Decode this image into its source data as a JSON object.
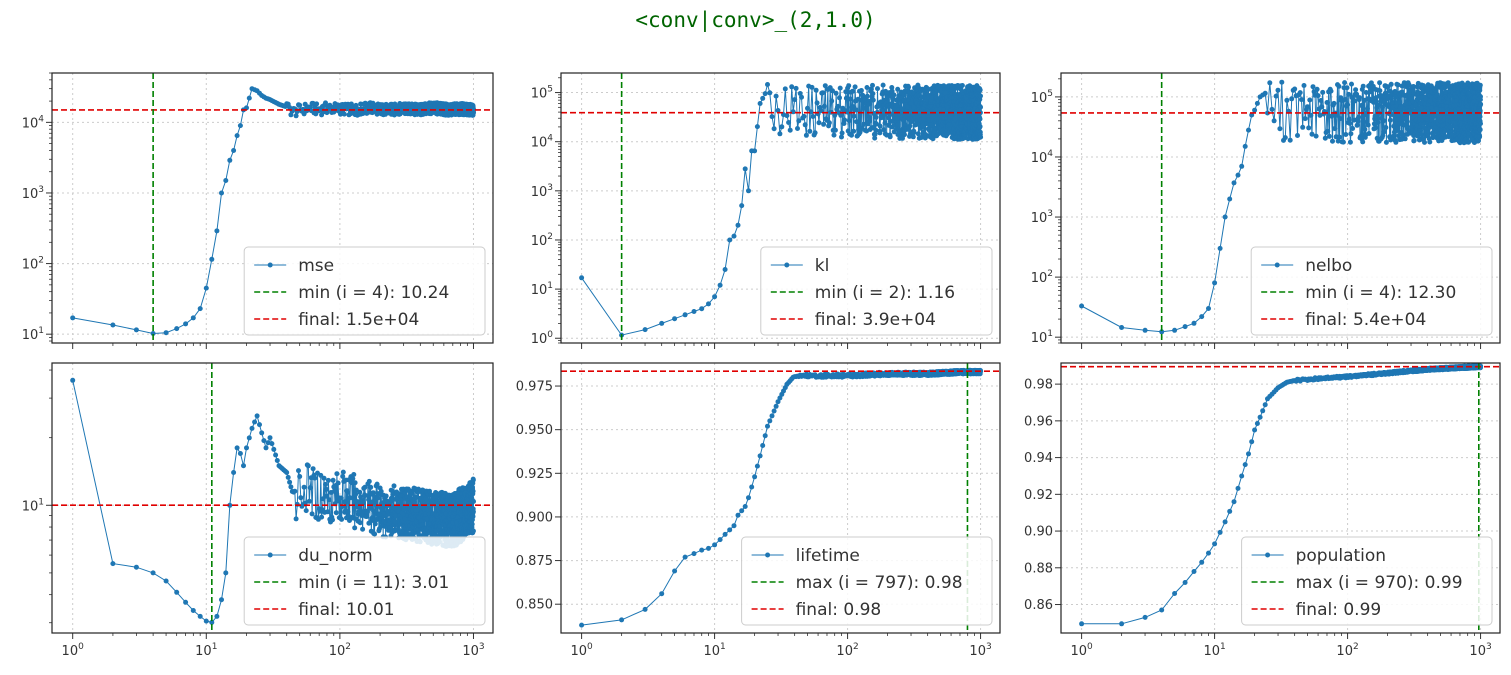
{
  "figure_title": "<conv|conv>_(2,1.0)",
  "colors": {
    "series": "#1f77b4",
    "min_max_line": "#008000",
    "final_line": "#e00000",
    "title": "#006400",
    "grid": "#cccccc"
  },
  "chart_data": [
    {
      "type": "line",
      "metric": "mse",
      "xscale": "log",
      "yscale": "log",
      "xlim": [
        0.7,
        1400
      ],
      "ylim": [
        7.5,
        50000
      ],
      "grid": true,
      "legend_position": "lower-right",
      "yticks": [
        {
          "v": 10,
          "label": "10^1"
        },
        {
          "v": 100,
          "label": "10^2"
        },
        {
          "v": 1000,
          "label": "10^3"
        },
        {
          "v": 10000,
          "label": "10^4"
        }
      ],
      "xticks": [],
      "points": [
        [
          1,
          17
        ],
        [
          2,
          13.5
        ],
        [
          3,
          11.5
        ],
        [
          4,
          10.24
        ],
        [
          5,
          10.5
        ],
        [
          6,
          12
        ],
        [
          7,
          14
        ],
        [
          8,
          17
        ],
        [
          9,
          23
        ],
        [
          10,
          45
        ],
        [
          11,
          115
        ],
        [
          12,
          290
        ],
        [
          13,
          1000
        ],
        [
          14,
          1500
        ],
        [
          15,
          2900
        ],
        [
          16,
          4000
        ],
        [
          17,
          6500
        ],
        [
          18,
          9000
        ],
        [
          19,
          15000
        ],
        [
          20,
          16000
        ],
        [
          22,
          30000
        ],
        [
          24,
          28000
        ],
        [
          26,
          24000
        ],
        [
          28,
          22000
        ],
        [
          30,
          21000
        ],
        [
          35,
          18000
        ],
        [
          40,
          16500
        ],
        [
          45,
          14000
        ],
        [
          50,
          15000
        ],
        [
          60,
          16000
        ],
        [
          70,
          15000
        ],
        [
          80,
          16000
        ],
        [
          100,
          15500
        ],
        [
          130,
          15000
        ],
        [
          170,
          16000
        ],
        [
          220,
          15000
        ],
        [
          300,
          15500
        ],
        [
          400,
          15000
        ],
        [
          500,
          16000
        ],
        [
          650,
          15000
        ],
        [
          800,
          15500
        ],
        [
          1000,
          15000
        ]
      ],
      "noise": {
        "from": 40,
        "amp": 0.08
      },
      "extreme": {
        "kind": "min",
        "x": 4
      },
      "final": 15000,
      "legend": [
        {
          "label": "mse"
        },
        {
          "label": "min (i = 4): 10.24"
        },
        {
          "label": "final: 1.5e+04"
        }
      ]
    },
    {
      "type": "line",
      "metric": "kl",
      "xscale": "log",
      "yscale": "log",
      "xlim": [
        0.7,
        1400
      ],
      "ylim": [
        0.8,
        250000
      ],
      "grid": true,
      "legend_position": "lower-right",
      "yticks": [
        {
          "v": 1,
          "label": "10^0"
        },
        {
          "v": 10,
          "label": "10^1"
        },
        {
          "v": 100,
          "label": "10^2"
        },
        {
          "v": 1000,
          "label": "10^3"
        },
        {
          "v": 10000,
          "label": "10^4"
        },
        {
          "v": 100000,
          "label": "10^5"
        }
      ],
      "xticks": [],
      "points": [
        [
          1,
          17
        ],
        [
          2,
          1.16
        ],
        [
          3,
          1.5
        ],
        [
          4,
          2
        ],
        [
          5,
          2.5
        ],
        [
          6,
          3
        ],
        [
          7,
          3.5
        ],
        [
          8,
          4
        ],
        [
          9,
          5
        ],
        [
          10,
          7
        ],
        [
          11,
          12
        ],
        [
          12,
          25
        ],
        [
          13,
          100
        ],
        [
          14,
          120
        ],
        [
          15,
          200
        ],
        [
          16,
          500
        ],
        [
          17,
          2800
        ],
        [
          18,
          1000
        ],
        [
          19,
          6500
        ],
        [
          20,
          6500
        ],
        [
          22,
          60000
        ],
        [
          24,
          95000
        ],
        [
          26,
          60000
        ],
        [
          30,
          50000
        ],
        [
          40,
          45000
        ],
        [
          60,
          40000
        ],
        [
          100,
          45000
        ],
        [
          200,
          40000
        ],
        [
          400,
          40000
        ],
        [
          1000,
          39000
        ]
      ],
      "noise": {
        "from": 25,
        "amp": 0.55
      },
      "extreme": {
        "kind": "min",
        "x": 2
      },
      "final": 39000,
      "legend": [
        {
          "label": "kl"
        },
        {
          "label": "min (i = 2): 1.16"
        },
        {
          "label": "final: 3.9e+04"
        }
      ]
    },
    {
      "type": "line",
      "metric": "nelbo",
      "xscale": "log",
      "yscale": "log",
      "xlim": [
        0.7,
        1400
      ],
      "ylim": [
        8,
        250000
      ],
      "grid": true,
      "legend_position": "lower-right",
      "yticks": [
        {
          "v": 10,
          "label": "10^1"
        },
        {
          "v": 100,
          "label": "10^2"
        },
        {
          "v": 1000,
          "label": "10^3"
        },
        {
          "v": 10000,
          "label": "10^4"
        },
        {
          "v": 100000,
          "label": "10^5"
        }
      ],
      "xticks": [],
      "points": [
        [
          1,
          33
        ],
        [
          2,
          14.5
        ],
        [
          3,
          13
        ],
        [
          4,
          12.3
        ],
        [
          5,
          13
        ],
        [
          6,
          15
        ],
        [
          7,
          17
        ],
        [
          8,
          22
        ],
        [
          9,
          30
        ],
        [
          10,
          80
        ],
        [
          11,
          300
        ],
        [
          12,
          1000
        ],
        [
          13,
          2000
        ],
        [
          14,
          3700
        ],
        [
          15,
          5000
        ],
        [
          16,
          7000
        ],
        [
          17,
          15000
        ],
        [
          18,
          28000
        ],
        [
          19,
          50000
        ],
        [
          20,
          60000
        ],
        [
          22,
          100000
        ],
        [
          24,
          115000
        ],
        [
          26,
          70000
        ],
        [
          30,
          60000
        ],
        [
          40,
          55000
        ],
        [
          60,
          55000
        ],
        [
          100,
          55000
        ],
        [
          200,
          55000
        ],
        [
          400,
          55000
        ],
        [
          1000,
          54000
        ]
      ],
      "noise": {
        "from": 25,
        "amp": 0.5
      },
      "extreme": {
        "kind": "min",
        "x": 4
      },
      "final": 54000,
      "legend": [
        {
          "label": "nelbo"
        },
        {
          "label": "min (i = 4): 12.30"
        },
        {
          "label": "final: 5.4e+04"
        }
      ]
    },
    {
      "type": "line",
      "metric": "du_norm",
      "xscale": "log",
      "yscale": "log",
      "xlim": [
        0.7,
        1400
      ],
      "ylim": [
        2.7,
        43
      ],
      "grid": true,
      "legend_position": "lower-right",
      "yticks": [
        {
          "v": 10,
          "label": "10^1"
        }
      ],
      "xticks": [
        {
          "v": 1,
          "label": "10^0"
        },
        {
          "v": 10,
          "label": "10^1"
        },
        {
          "v": 100,
          "label": "10^2"
        },
        {
          "v": 1000,
          "label": "10^3"
        }
      ],
      "points": [
        [
          1,
          36
        ],
        [
          2,
          5.5
        ],
        [
          3,
          5.3
        ],
        [
          4,
          5
        ],
        [
          5,
          4.6
        ],
        [
          6,
          4.1
        ],
        [
          7,
          3.7
        ],
        [
          8,
          3.4
        ],
        [
          9,
          3.2
        ],
        [
          10,
          3.05
        ],
        [
          11,
          3.01
        ],
        [
          12,
          3.2
        ],
        [
          13,
          3.8
        ],
        [
          14,
          5
        ],
        [
          15,
          10
        ],
        [
          16,
          14
        ],
        [
          17,
          18
        ],
        [
          18,
          17
        ],
        [
          19,
          15
        ],
        [
          20,
          18
        ],
        [
          22,
          22
        ],
        [
          24,
          25
        ],
        [
          26,
          21
        ],
        [
          28,
          18
        ],
        [
          30,
          20
        ],
        [
          35,
          15
        ],
        [
          40,
          14
        ],
        [
          45,
          11
        ],
        [
          50,
          12
        ],
        [
          70,
          11
        ],
        [
          100,
          11
        ],
        [
          200,
          9.5
        ],
        [
          400,
          9
        ],
        [
          700,
          8.5
        ],
        [
          1000,
          10.01
        ]
      ],
      "noise": {
        "from": 45,
        "amp": 0.12
      },
      "extreme": {
        "kind": "min",
        "x": 11
      },
      "final": 10.01,
      "legend": [
        {
          "label": "du_norm"
        },
        {
          "label": "min (i = 11): 3.01"
        },
        {
          "label": "final: 10.01"
        }
      ]
    },
    {
      "type": "line",
      "metric": "lifetime",
      "xscale": "log",
      "yscale": "linear",
      "xlim": [
        0.7,
        1400
      ],
      "ylim": [
        0.8335,
        0.9882
      ],
      "grid": true,
      "legend_position": "lower-right",
      "yticks": [
        {
          "v": 0.85,
          "label": "0.850"
        },
        {
          "v": 0.875,
          "label": "0.875"
        },
        {
          "v": 0.9,
          "label": "0.900"
        },
        {
          "v": 0.925,
          "label": "0.925"
        },
        {
          "v": 0.95,
          "label": "0.950"
        },
        {
          "v": 0.975,
          "label": "0.975"
        }
      ],
      "xticks": [
        {
          "v": 1,
          "label": "10^0"
        },
        {
          "v": 10,
          "label": "10^1"
        },
        {
          "v": 100,
          "label": "10^2"
        },
        {
          "v": 1000,
          "label": "10^3"
        }
      ],
      "points": [
        [
          1,
          0.838
        ],
        [
          2,
          0.841
        ],
        [
          3,
          0.847
        ],
        [
          4,
          0.856
        ],
        [
          5,
          0.869
        ],
        [
          6,
          0.877
        ],
        [
          7,
          0.879
        ],
        [
          8,
          0.881
        ],
        [
          9,
          0.882
        ],
        [
          10,
          0.884
        ],
        [
          11,
          0.887
        ],
        [
          12,
          0.89
        ],
        [
          14,
          0.895
        ],
        [
          15,
          0.901
        ],
        [
          17,
          0.906
        ],
        [
          18,
          0.911
        ],
        [
          20,
          0.923
        ],
        [
          22,
          0.935
        ],
        [
          25,
          0.952
        ],
        [
          30,
          0.966
        ],
        [
          35,
          0.976
        ],
        [
          40,
          0.981
        ],
        [
          50,
          0.981
        ],
        [
          100,
          0.981
        ],
        [
          200,
          0.982
        ],
        [
          400,
          0.982
        ],
        [
          700,
          0.983
        ],
        [
          1000,
          0.983
        ]
      ],
      "noise": {
        "from": 40,
        "amp": 0.001
      },
      "extreme": {
        "kind": "max",
        "x": 797
      },
      "final": 0.9835,
      "legend": [
        {
          "label": "lifetime"
        },
        {
          "label": "max (i = 797): 0.98"
        },
        {
          "label": "final: 0.98"
        }
      ]
    },
    {
      "type": "line",
      "metric": "population",
      "xscale": "log",
      "yscale": "linear",
      "xlim": [
        0.7,
        1400
      ],
      "ylim": [
        0.8445,
        0.9915
      ],
      "grid": true,
      "legend_position": "lower-right",
      "yticks": [
        {
          "v": 0.86,
          "label": "0.86"
        },
        {
          "v": 0.88,
          "label": "0.88"
        },
        {
          "v": 0.9,
          "label": "0.90"
        },
        {
          "v": 0.92,
          "label": "0.92"
        },
        {
          "v": 0.94,
          "label": "0.94"
        },
        {
          "v": 0.96,
          "label": "0.96"
        },
        {
          "v": 0.98,
          "label": "0.98"
        }
      ],
      "xticks": [
        {
          "v": 1,
          "label": "10^0"
        },
        {
          "v": 10,
          "label": "10^1"
        },
        {
          "v": 100,
          "label": "10^2"
        },
        {
          "v": 1000,
          "label": "10^3"
        }
      ],
      "points": [
        [
          1,
          0.8495
        ],
        [
          2,
          0.8495
        ],
        [
          3,
          0.853
        ],
        [
          4,
          0.857
        ],
        [
          5,
          0.866
        ],
        [
          6,
          0.872
        ],
        [
          7,
          0.878
        ],
        [
          8,
          0.883
        ],
        [
          9,
          0.888
        ],
        [
          10,
          0.893
        ],
        [
          12,
          0.905
        ],
        [
          14,
          0.916
        ],
        [
          16,
          0.93
        ],
        [
          18,
          0.942
        ],
        [
          20,
          0.955
        ],
        [
          22,
          0.962
        ],
        [
          25,
          0.972
        ],
        [
          30,
          0.978
        ],
        [
          35,
          0.981
        ],
        [
          40,
          0.982
        ],
        [
          60,
          0.983
        ],
        [
          100,
          0.984
        ],
        [
          200,
          0.986
        ],
        [
          400,
          0.988
        ],
        [
          700,
          0.989
        ],
        [
          1000,
          0.9895
        ]
      ],
      "noise": {
        "from": 40,
        "amp": 0.0006
      },
      "extreme": {
        "kind": "max",
        "x": 970
      },
      "final": 0.9895,
      "legend": [
        {
          "label": "population"
        },
        {
          "label": "max (i = 970): 0.99"
        },
        {
          "label": "final: 0.99"
        }
      ]
    }
  ]
}
